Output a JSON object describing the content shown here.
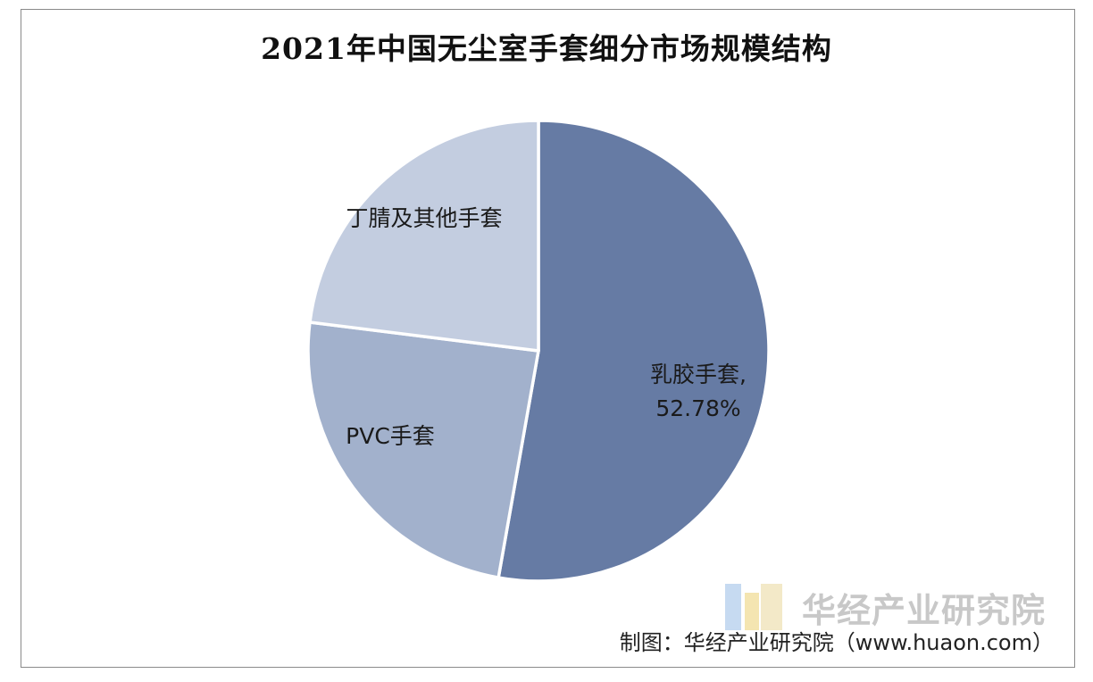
{
  "chart_data": {
    "type": "pie",
    "title": "2021年中国无尘室手套细分市场规模结构",
    "slices": [
      {
        "label": "乳胶手套,",
        "value_label": "52.78%",
        "value": 52.78,
        "color": "#667ba4"
      },
      {
        "label": "PVC手套",
        "value_label": "",
        "value": 24.2,
        "color": "#a2b1cc"
      },
      {
        "label": "丁腈及其他手套",
        "value_label": "",
        "value": 23.02,
        "color": "#c3cde0"
      }
    ]
  },
  "watermark": {
    "name": "华经产业研究院"
  },
  "source": "制图：华经产业研究院（www.huaon.com）"
}
